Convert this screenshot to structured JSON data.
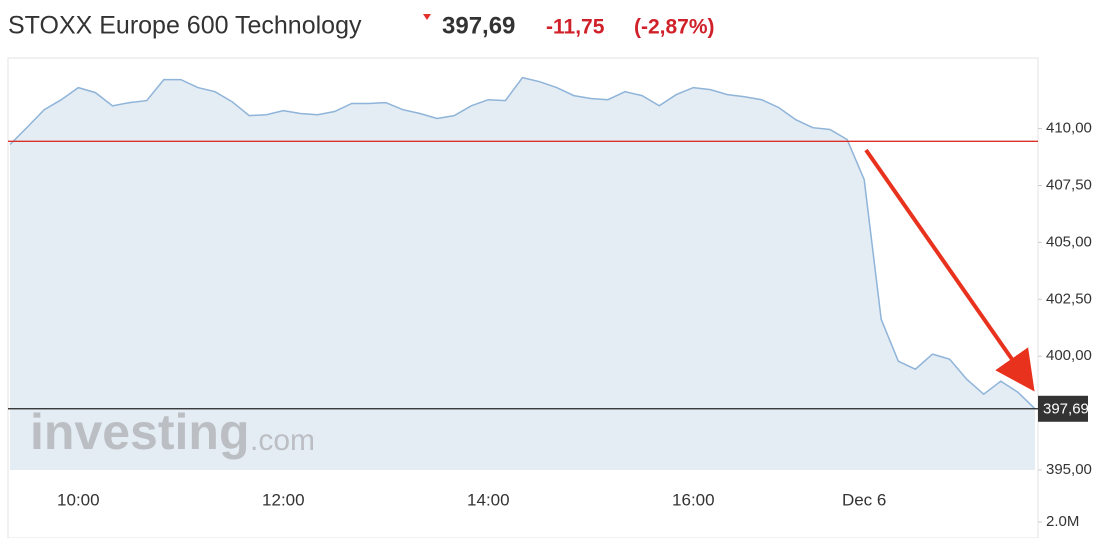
{
  "chart_data": {
    "type": "area",
    "title": "STOXX Europe 600 Technology",
    "last": {
      "value": 397.69,
      "label": "397,69"
    },
    "change": {
      "value": -11.75,
      "label": "-11,75"
    },
    "change_pct": {
      "value": -2.87,
      "label": "(-2,87%)"
    },
    "watermark": "investing",
    "watermark_suffix": ".com",
    "categories": [
      null,
      null,
      null,
      null,
      "10:00",
      null,
      null,
      null,
      null,
      null,
      null,
      null,
      null,
      null,
      null,
      null,
      "12:00",
      null,
      null,
      null,
      null,
      null,
      null,
      null,
      null,
      null,
      null,
      null,
      "14:00",
      null,
      null,
      null,
      null,
      null,
      null,
      null,
      null,
      null,
      null,
      null,
      "16:00",
      null,
      null,
      null,
      null,
      null,
      null,
      null,
      null,
      null,
      "Dec 6",
      null,
      null,
      null,
      null,
      null,
      null,
      null,
      null,
      null,
      null
    ],
    "series": [
      {
        "color": "#8fb4d9",
        "fill": "#e4ecf4",
        "values": [
          409.3,
          410.05,
          410.83,
          411.27,
          411.8,
          411.58,
          411.0,
          411.14,
          411.23,
          412.15,
          412.15,
          411.8,
          411.62,
          411.18,
          410.57,
          410.61,
          410.79,
          410.66,
          410.61,
          410.75,
          411.1,
          411.1,
          411.14,
          410.83,
          410.66,
          410.44,
          410.57,
          411.0,
          411.27,
          411.23,
          412.24,
          412.06,
          411.8,
          411.45,
          411.32,
          411.27,
          411.62,
          411.45,
          411.0,
          411.49,
          411.8,
          411.71,
          411.49,
          411.4,
          411.27,
          410.92,
          410.39,
          410.04,
          409.96,
          409.52,
          407.76,
          401.62,
          399.78,
          399.43,
          400.09,
          399.87,
          398.99,
          398.33,
          398.9,
          398.42,
          397.69
        ]
      }
    ],
    "ylim": [
      395,
      413.1
    ],
    "yticks": [
      {
        "value": 395,
        "label": "395,00"
      },
      {
        "value": 400,
        "label": "400,00"
      },
      {
        "value": 402.5,
        "label": "402,50"
      },
      {
        "value": 405,
        "label": "405,00"
      },
      {
        "value": 407.5,
        "label": "407,50"
      },
      {
        "value": 410,
        "label": "410,00"
      }
    ],
    "volume_ticks": [
      {
        "value": 2000000,
        "label": "2.0M"
      }
    ]
  }
}
